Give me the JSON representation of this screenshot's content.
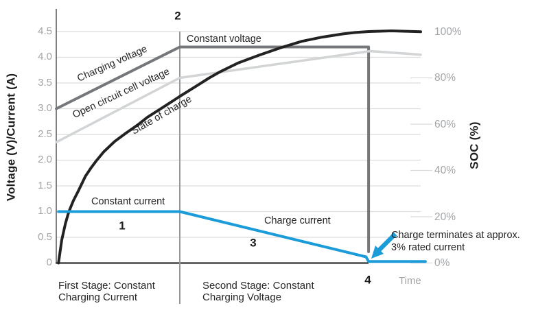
{
  "chart_data": {
    "type": "line",
    "title": "",
    "x_axis": {
      "label": "Time",
      "range": [
        0,
        10
      ],
      "numeric_ticks": false
    },
    "y_axis_left": {
      "label": "Voltage (V)/Current (A)",
      "range": [
        0,
        4.5
      ],
      "ticks": [
        {
          "v": 4.5,
          "label": "4.5"
        },
        {
          "v": 4.0,
          "label": "4.0"
        },
        {
          "v": 3.5,
          "label": "3.5"
        },
        {
          "v": 3.0,
          "label": "3.0"
        },
        {
          "v": 2.5,
          "label": "2.5"
        },
        {
          "v": 2.0,
          "label": "2.0"
        },
        {
          "v": 1.5,
          "label": "1.5"
        },
        {
          "v": 1.0,
          "label": "1.0"
        },
        {
          "v": 0.5,
          "label": "0.5"
        },
        {
          "v": 0,
          "label": "0"
        }
      ]
    },
    "y_axis_right": {
      "label": "SOC (%)",
      "range": [
        0,
        100
      ],
      "ticks": [
        {
          "pct": 100,
          "label": "100%"
        },
        {
          "pct": 80,
          "label": "80%"
        },
        {
          "pct": 60,
          "label": "60%"
        },
        {
          "pct": 40,
          "label": "40%"
        },
        {
          "pct": 20,
          "label": "20%"
        },
        {
          "pct": 0,
          "label": "0%"
        }
      ]
    },
    "stage_divider_t": 3.39,
    "termination_t": 8.57,
    "series": [
      {
        "name": "Charging voltage",
        "unit": "V",
        "color": "#76777a",
        "width": 4,
        "points": [
          [
            0,
            3.0
          ],
          [
            3.39,
            4.2
          ],
          [
            8.57,
            4.2
          ],
          [
            8.57,
            0.22
          ]
        ]
      },
      {
        "name": "Open circuit cell voltage",
        "unit": "V",
        "color": "#d2d4d5",
        "width": 3.5,
        "points": [
          [
            0,
            2.35
          ],
          [
            3.39,
            3.6
          ],
          [
            8.62,
            4.12
          ],
          [
            10,
            4.05
          ]
        ]
      },
      {
        "name": "State of charge",
        "unit": "%",
        "color": "#232222",
        "width": 4,
        "points": [
          [
            0.06,
            0
          ],
          [
            0.15,
            10
          ],
          [
            0.25,
            17
          ],
          [
            0.34,
            22
          ],
          [
            0.47,
            27
          ],
          [
            0.6,
            31
          ],
          [
            0.8,
            37.5
          ],
          [
            0.95,
            41
          ],
          [
            1.09,
            44
          ],
          [
            1.3,
            48
          ],
          [
            1.6,
            52.5
          ],
          [
            1.9,
            56
          ],
          [
            2.22,
            59.5
          ],
          [
            2.5,
            63
          ],
          [
            2.8,
            66
          ],
          [
            3.1,
            69
          ],
          [
            3.39,
            72
          ],
          [
            3.9,
            77
          ],
          [
            4.2,
            80
          ],
          [
            4.48,
            82.5
          ],
          [
            5.0,
            86.5
          ],
          [
            5.6,
            90
          ],
          [
            6.2,
            93.2
          ],
          [
            6.74,
            95.8
          ],
          [
            7.3,
            97.6
          ],
          [
            7.87,
            99
          ],
          [
            8.2,
            99.6
          ],
          [
            8.57,
            100
          ],
          [
            9.2,
            100.3
          ],
          [
            10,
            99.9
          ]
        ]
      },
      {
        "name": "Charge current",
        "unit": "A",
        "color": "#1b9cd8",
        "width": 4,
        "points": [
          [
            0.06,
            1.0
          ],
          [
            3.39,
            1.0
          ],
          [
            8.5,
            0.12
          ],
          [
            8.57,
            0.03
          ],
          [
            10.13,
            0.03
          ]
        ]
      }
    ],
    "stages": [
      {
        "number": "1",
        "line1": "First Stage: Constant",
        "line2": "Charging Current"
      },
      {
        "number": "3",
        "line1": "Second Stage: Constant",
        "line2": "Charging Voltage"
      }
    ],
    "annotations": [
      {
        "id": "2",
        "text": "Constant voltage"
      },
      {
        "id": "4",
        "text": "Charge terminates at approx. 3% rated current"
      }
    ]
  },
  "labels": {
    "v_axis_title": "Voltage (V)/Current (A)",
    "soc_axis_title": "SOC (%)",
    "time": "Time",
    "constant_voltage": "Constant voltage",
    "constant_current": "Constant current",
    "charge_current": "Charge current",
    "charging_voltage": "Charging voltage",
    "open_circuit": "Open circuit cell voltage",
    "state_of_charge": "State of charge",
    "n1": "1",
    "n2": "2",
    "n3": "3",
    "n4": "4",
    "stage1_line1": "First Stage: Constant",
    "stage1_line2": "Charging Current",
    "stage2_line1": "Second Stage: Constant",
    "stage2_line2": "Charging Voltage",
    "annotation_line1": "Charge terminates at approx.",
    "annotation_line2": "3% rated current"
  },
  "colors": {
    "blue": "#1b9cd8",
    "dark_gray_line": "#76777a",
    "light_gray_line": "#d2d4d5",
    "black_line": "#232222",
    "gridline": "#dcdcdc",
    "divider": "#96989b",
    "axis": "#5f6062",
    "x_axis": "#2f2e2c",
    "tick_text": "#a2a4a7",
    "text": "#272525"
  }
}
